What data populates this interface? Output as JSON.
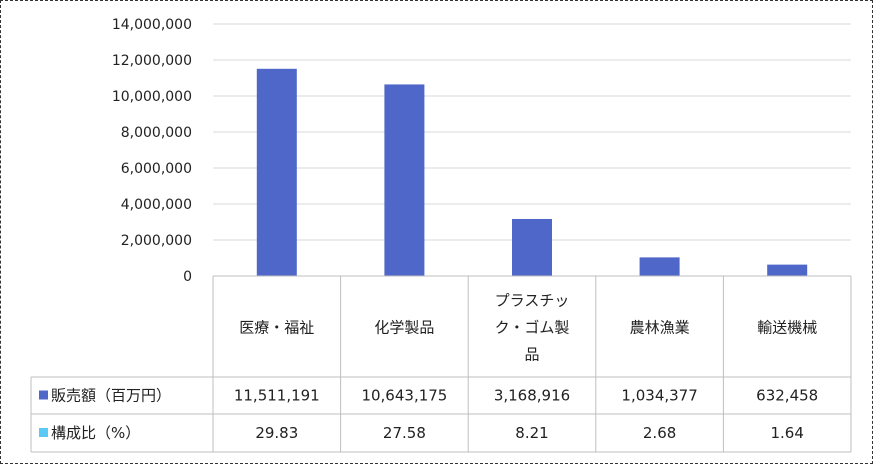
{
  "chart_data": {
    "type": "bar",
    "categories": [
      [
        "医療・福祉"
      ],
      [
        "化学製品"
      ],
      [
        "プラスチッ",
        "ク・ゴム製",
        "品"
      ],
      [
        "農林漁業"
      ],
      [
        "輸送機械"
      ]
    ],
    "ylim": [
      0,
      14000000
    ],
    "ytick_labels": [
      "0",
      "2,000,000",
      "4,000,000",
      "6,000,000",
      "8,000,000",
      "10,000,000",
      "12,000,000",
      "14,000,000"
    ],
    "ytick_values": [
      0,
      2000000,
      4000000,
      6000000,
      8000000,
      10000000,
      12000000,
      14000000
    ],
    "grid": true,
    "series": [
      {
        "name": "販売額（百万円）",
        "color": "#4F67C8",
        "values": [
          11511191,
          10643175,
          3168916,
          1034377,
          632458
        ],
        "value_labels": [
          "11,511,191",
          "10,643,175",
          "3,168,916",
          "1,034,377",
          "632,458"
        ],
        "plotted": true
      },
      {
        "name": "構成比（%）",
        "color": "#5BC8F5",
        "values": [
          29.83,
          27.58,
          8.21,
          2.68,
          1.64
        ],
        "value_labels": [
          "29.83",
          "27.58",
          "8.21",
          "2.68",
          "1.64"
        ],
        "plotted": false
      }
    ],
    "data_table": true
  }
}
